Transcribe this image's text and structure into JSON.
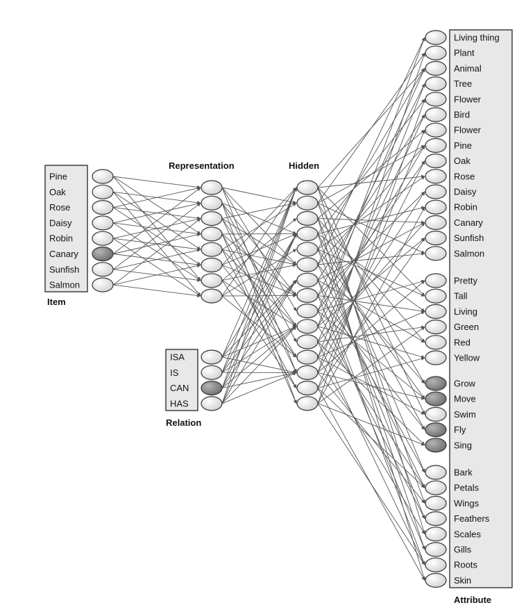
{
  "colors": {
    "node_fill": "#f2f2f2",
    "node_active_fill": "#8a8a8a",
    "edge": "#555555",
    "box_fill": "#e8e8e8"
  },
  "item": {
    "title": "Item",
    "units": [
      "Pine",
      "Oak",
      "Rose",
      "Daisy",
      "Robin",
      "Canary",
      "Sunfish",
      "Salmon"
    ],
    "active": [
      "Canary"
    ]
  },
  "representation": {
    "title": "Representation",
    "unit_count": 8
  },
  "relation": {
    "title": "Relation",
    "units": [
      "ISA",
      "IS",
      "CAN",
      "HAS"
    ],
    "active": [
      "CAN"
    ]
  },
  "hidden": {
    "title": "Hidden",
    "unit_count": 15
  },
  "attribute": {
    "title": "Attribute",
    "groups": [
      [
        "Living thing",
        "Plant",
        "Animal",
        "Tree",
        "Flower",
        "Bird",
        "Flower",
        "Pine",
        "Oak",
        "Rose",
        "Daisy",
        "Robin",
        "Canary",
        "Sunfish",
        "Salmon"
      ],
      [
        "Pretty",
        "Tall",
        "Living",
        "Green",
        "Red",
        "Yellow"
      ],
      [
        "Grow",
        "Move",
        "Swim",
        "Fly",
        "Sing"
      ],
      [
        "Bark",
        "Petals",
        "Wings",
        "Feathers",
        "Scales",
        "Gills",
        "Roots",
        "Skin"
      ]
    ],
    "active": [
      "Grow",
      "Move",
      "Fly",
      "Sing"
    ]
  }
}
